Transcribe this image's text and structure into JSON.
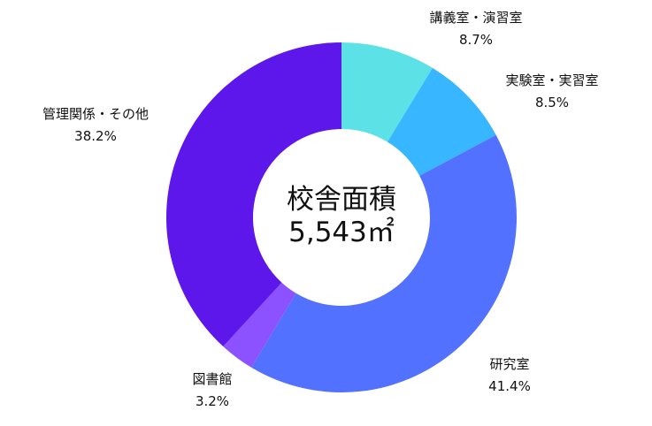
{
  "chart_data": {
    "type": "pie",
    "donut": true,
    "center_label": {
      "title": "校舎面積",
      "value": "5,543㎡"
    },
    "slices": [
      {
        "label": "講義室・演習室",
        "value": 8.7,
        "display": "8.7%",
        "color": "#5ce1e6"
      },
      {
        "label": "実験室・実習室",
        "value": 8.5,
        "display": "8.5%",
        "color": "#38b6ff"
      },
      {
        "label": "研究室",
        "value": 41.4,
        "display": "41.4%",
        "color": "#5271ff"
      },
      {
        "label": "図書館",
        "value": 3.2,
        "display": "3.2%",
        "color": "#8c52ff"
      },
      {
        "label": "管理関係・その他",
        "value": 38.2,
        "display": "38.2%",
        "color": "#5e17eb"
      }
    ]
  }
}
